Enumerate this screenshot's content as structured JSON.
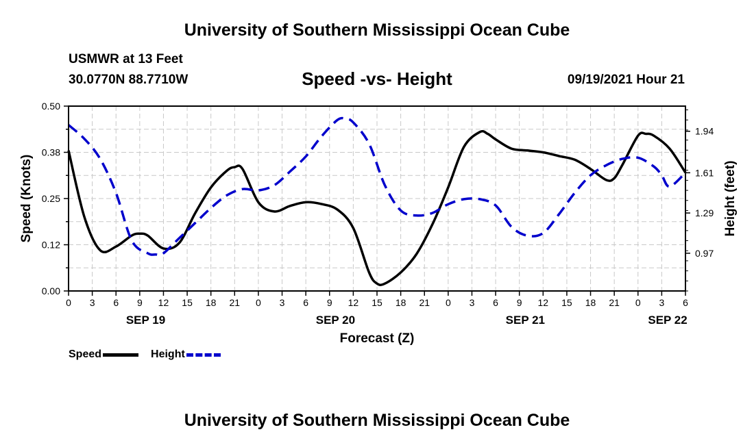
{
  "header": {
    "title_top": "University of Southern Mississippi Ocean Cube",
    "title_bottom": "University of Southern Mississippi Ocean Cube",
    "station": "USMWR at 13 Feet",
    "coords": "30.0770N  88.7710W",
    "datetime": "09/19/2021 Hour 21"
  },
  "legend": {
    "speed_label": "Speed",
    "height_label": "Height"
  },
  "colors": {
    "speed": "#000000",
    "height": "#0000cc",
    "grid": "#c8c8c8"
  },
  "chart_data": {
    "type": "line",
    "title": "Speed -vs- Height",
    "xlabel": "Forecast (Z)",
    "ylabel": "Speed (Knots)",
    "y2label": "Height (feet)",
    "xlim": [
      0,
      78
    ],
    "ylim": [
      0,
      0.5
    ],
    "y2lim": [
      0.67,
      2.14
    ],
    "x_tick_labels": [
      "0",
      "3",
      "6",
      "9",
      "12",
      "15",
      "18",
      "21",
      "0",
      "3",
      "6",
      "9",
      "12",
      "15",
      "18",
      "21",
      "0",
      "3",
      "6",
      "9",
      "12",
      "15",
      "18",
      "21",
      "0",
      "3",
      "6"
    ],
    "y_tick_labels": [
      "0.00",
      "0.12",
      "0.25",
      "0.38",
      "0.50"
    ],
    "y2_tick_labels": [
      "0.97",
      "1.29",
      "1.61",
      "1.94"
    ],
    "y2_ticks": [
      0.97,
      1.29,
      1.61,
      1.94
    ],
    "date_labels": [
      {
        "label": "SEP 19",
        "x": 9.75
      },
      {
        "label": "SEP 20",
        "x": 33.75
      },
      {
        "label": "SEP 21",
        "x": 57.75
      },
      {
        "label": "SEP 22",
        "x": 75.75
      }
    ],
    "series": [
      {
        "name": "Speed",
        "axis": "left",
        "x": [
          0,
          2,
          4,
          6,
          8,
          9,
          10,
          12,
          14,
          16,
          18,
          20,
          21,
          22,
          24,
          26,
          28,
          30,
          32,
          34,
          36,
          38,
          39,
          40,
          42,
          44,
          46,
          48,
          50,
          52,
          53,
          54,
          56,
          58,
          60,
          62,
          64,
          66,
          68,
          69,
          70,
          72,
          73,
          74,
          76,
          78
        ],
        "values": [
          0.38,
          0.2,
          0.11,
          0.12,
          0.15,
          0.155,
          0.15,
          0.115,
          0.13,
          0.21,
          0.28,
          0.325,
          0.335,
          0.33,
          0.24,
          0.215,
          0.23,
          0.24,
          0.235,
          0.22,
          0.17,
          0.05,
          0.02,
          0.02,
          0.05,
          0.1,
          0.18,
          0.28,
          0.39,
          0.43,
          0.425,
          0.41,
          0.385,
          0.38,
          0.375,
          0.365,
          0.355,
          0.33,
          0.3,
          0.305,
          0.34,
          0.42,
          0.425,
          0.42,
          0.385,
          0.32
        ]
      },
      {
        "name": "Height",
        "axis": "right",
        "x": [
          0,
          2,
          4,
          6,
          8,
          10,
          11,
          12,
          14,
          16,
          18,
          20,
          22,
          24,
          26,
          28,
          30,
          32,
          34,
          35,
          36,
          38,
          40,
          42,
          44,
          46,
          48,
          50,
          52,
          54,
          56,
          58,
          60,
          62,
          64,
          66,
          68,
          70,
          72,
          74,
          75,
          76,
          78
        ],
        "values": [
          1.99,
          1.88,
          1.72,
          1.45,
          1.07,
          0.97,
          0.96,
          0.97,
          1.09,
          1.21,
          1.33,
          1.43,
          1.48,
          1.47,
          1.51,
          1.62,
          1.74,
          1.9,
          2.03,
          2.04,
          2.01,
          1.84,
          1.51,
          1.31,
          1.27,
          1.29,
          1.36,
          1.4,
          1.4,
          1.35,
          1.18,
          1.11,
          1.13,
          1.28,
          1.45,
          1.59,
          1.67,
          1.72,
          1.73,
          1.66,
          1.59,
          1.5,
          1.61
        ]
      }
    ]
  }
}
